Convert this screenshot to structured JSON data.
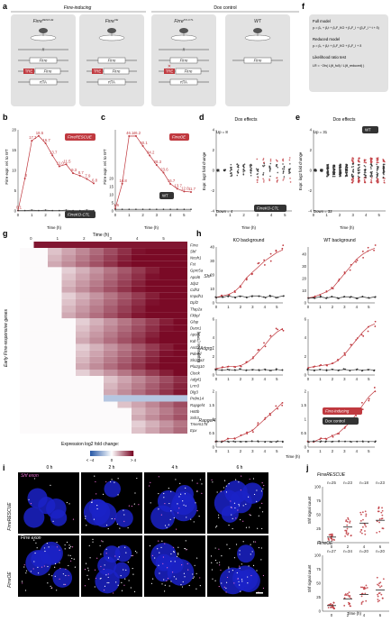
{
  "panel_letters": [
    "a",
    "b",
    "c",
    "d",
    "e",
    "f",
    "g",
    "h",
    "i",
    "j"
  ],
  "colors": {
    "red": "#c0393f",
    "dark": "#333333",
    "box": "#e2e2e2",
    "blue_cell": "#1b22c8",
    "heat_low": "#2b5ba8",
    "heat_high": "#7a0a26"
  },
  "panel_a": {
    "group_inducing": "Firre-inducing",
    "group_control": "Dox control",
    "boxes": [
      {
        "title": "Firre",
        "sup": "RESCUE",
        "rows": [
          "",
          "Firre",
          "TRE Firre",
          "rtTA"
        ],
        "ko": true
      },
      {
        "title": "Firre",
        "sup": "OE",
        "rows": [
          "",
          "Firre",
          "TRE Firre",
          "rtTA"
        ],
        "ko": false
      },
      {
        "title": "Firre",
        "sup": "KO-CTL",
        "rows": [
          "",
          "Firre",
          "TRE Firre",
          "rtTA"
        ],
        "ko": true
      },
      {
        "title": "WT",
        "sup": "",
        "rows": [
          "",
          "Firre"
        ],
        "ko": false
      }
    ]
  },
  "panel_f": {
    "full_model_label": "Full model",
    "full_eq": "yᵢ = β₀ + β₁t + β₂F_KO + β₃F_I + (β₄F_I * t + δ)",
    "reduced_model_label": "Reduced model",
    "reduced_eq": "yᵢ = β₀ + β₁t + β₂F_KO + β₃F_I + δ",
    "lrt_label": "Likelihood ratio test",
    "lrt_eq": "LR = −2ln( L(θ_full) / L(θ_reduced) )"
  },
  "panel_b": {
    "ylabel": "Firre expr. rel. to WT",
    "xlabel": "Time (h)",
    "legend_top": "FirreRESCUE",
    "legend_bottom": "FirreKO-CTL"
  },
  "panel_c": {
    "ylabel": "Firre expr. rel. to WT",
    "xlabel": "Time (h)",
    "legend_top": "FirreOE",
    "legend_bottom": "WT"
  },
  "panel_d": {
    "title": "Dox effects",
    "ylabel": "Expr. log2 fold change",
    "xlabel": "Time (h)",
    "up": "Up = 8",
    "down": "Down = 4",
    "legend": "FirreKO-CTL"
  },
  "panel_e": {
    "title": "Dox effects",
    "ylabel": "Expr. log2 fold change",
    "xlabel": "Time (h)",
    "up": "Up = 31",
    "down": "Down = 32",
    "legend": "WT"
  },
  "panel_g": {
    "time_label": "Time (h)",
    "time_ticks": [
      "0",
      "1",
      "2",
      "3",
      "4",
      "5"
    ],
    "ylabel": "Early Firre-responsive genes",
    "genes": [
      "Firre",
      "Shf",
      "Ncoh1",
      "Fst",
      "Gprc5a",
      "Apol6",
      "Jdp2",
      "Cdh3",
      "Impdh1",
      "Dpf2",
      "Tfap2a",
      "Fkbpl",
      "Gfap",
      "Duox1",
      "Apod",
      "Kdr",
      "Ascl2",
      "Pde6d",
      "Slc29a3",
      "Pla2g10",
      "Clock",
      "Adgrl1",
      "Lrrn3",
      "Dlg3",
      "Prdm14",
      "Rapgef4",
      "H60b",
      "Ssh3",
      "Tmem178",
      "Epx"
    ],
    "onset": [
      1,
      2,
      2,
      2,
      3,
      3,
      3,
      3,
      3,
      3,
      3,
      3,
      4,
      4,
      4,
      4,
      4,
      4,
      4,
      4,
      4,
      6,
      6,
      6,
      6,
      7,
      8,
      8,
      8,
      8
    ],
    "expression_title": "Expression log2 fold change:",
    "scale_min": "< −4",
    "scale_mid": "0",
    "scale_max": "> 4"
  },
  "panel_h": {
    "ko_title": "KO background",
    "wt_title": "WT background",
    "genes": [
      "Shf",
      "Adgrg1",
      "Rapgef4"
    ],
    "ylabel": "Expression (TPM)",
    "xlabel": "Time (h)",
    "ticks": [
      "0",
      "1",
      "2",
      "3",
      "4",
      "5"
    ],
    "legend_inducing": "Firre-inducing",
    "legend_control": "Dox control",
    "series_red": [
      [
        4,
        5,
        6,
        8,
        12,
        18,
        22,
        26,
        30,
        33,
        36,
        38
      ],
      [
        0.7,
        0.8,
        0.9,
        0.9,
        1.0,
        1.3,
        1.8,
        2.5,
        3.2,
        4.0,
        4.6,
        5.0
      ],
      [
        0.2,
        0.2,
        0.3,
        0.3,
        0.4,
        0.5,
        0.6,
        0.8,
        1.0,
        1.2,
        1.4,
        1.6
      ]
    ],
    "series_red_wt": [
      [
        4,
        5,
        7,
        9,
        12,
        18,
        24,
        30,
        36,
        40,
        43,
        45
      ],
      [
        0.8,
        0.9,
        1.0,
        1.1,
        1.2,
        1.6,
        2.2,
        3.0,
        3.8,
        4.6,
        5.2,
        5.5
      ],
      [
        0.2,
        0.2,
        0.3,
        0.3,
        0.4,
        0.5,
        0.7,
        0.9,
        1.2,
        1.5,
        1.8,
        2.0
      ]
    ],
    "series_dark": [
      [
        4,
        4,
        5,
        4,
        5,
        4,
        5,
        5,
        4,
        5,
        4,
        5
      ],
      [
        0.6,
        0.5,
        0.6,
        0.5,
        0.6,
        0.5,
        0.6,
        0.5,
        0.6,
        0.5,
        0.6,
        0.5
      ],
      [
        0.2,
        0.2,
        0.2,
        0.2,
        0.2,
        0.2,
        0.2,
        0.2,
        0.2,
        0.2,
        0.2,
        0.2
      ]
    ]
  },
  "panel_i": {
    "times": [
      "0 h",
      "2 h",
      "4 h",
      "6 h"
    ],
    "rows": [
      "FirreRESCUE",
      "FirreOE"
    ],
    "legend_shf": "Shf exon",
    "legend_firre": "Firre exon"
  },
  "panel_j": {
    "top_title": "FirreRESCUE",
    "bottom_title": "FirreOE",
    "top_n": [
      "n=25",
      "n=23",
      "n=18",
      "n=23"
    ],
    "bottom_n": [
      "n=27",
      "n=34",
      "n=20",
      "n=20"
    ],
    "ylabel": "Shf signal count",
    "xlabel": "Time (h)",
    "ticks": [
      "0",
      "2",
      "4",
      "6"
    ],
    "top_medians": [
      10,
      28,
      35,
      40
    ],
    "bottom_medians": [
      10,
      22,
      30,
      38
    ]
  }
}
